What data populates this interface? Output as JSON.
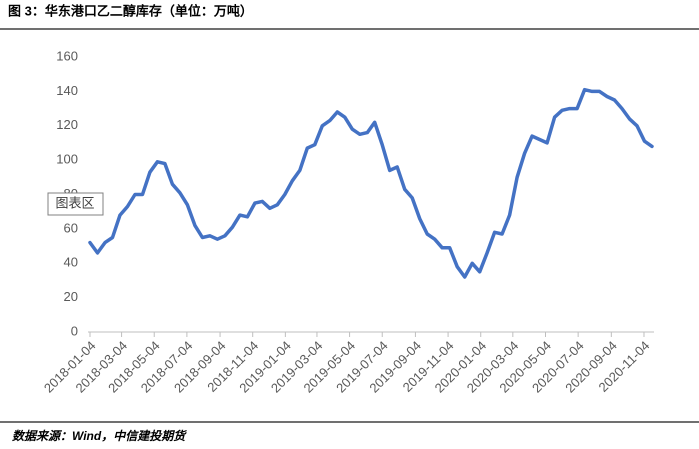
{
  "chart_data": {
    "type": "line",
    "title": "图 3：华东港口乙二醇库存（单位：万吨）",
    "source": "数据来源：Wind，中信建投期货",
    "tooltip": "图表区",
    "color": "#4472c4",
    "x": [
      "2018-01-04",
      "2018-01-18",
      "2018-02-01",
      "2018-02-15",
      "2018-03-01",
      "2018-03-15",
      "2018-03-29",
      "2018-04-12",
      "2018-04-26",
      "2018-05-10",
      "2018-05-24",
      "2018-06-07",
      "2018-06-21",
      "2018-07-05",
      "2018-07-19",
      "2018-08-02",
      "2018-08-16",
      "2018-08-30",
      "2018-09-13",
      "2018-09-27",
      "2018-10-11",
      "2018-10-25",
      "2018-11-08",
      "2018-11-22",
      "2018-12-06",
      "2018-12-20",
      "2019-01-03",
      "2019-01-17",
      "2019-01-31",
      "2019-02-14",
      "2019-02-28",
      "2019-03-14",
      "2019-03-28",
      "2019-04-11",
      "2019-04-25",
      "2019-05-09",
      "2019-05-23",
      "2019-06-06",
      "2019-06-20",
      "2019-07-04",
      "2019-07-18",
      "2019-08-01",
      "2019-08-15",
      "2019-08-29",
      "2019-09-12",
      "2019-09-26",
      "2019-10-10",
      "2019-10-24",
      "2019-11-07",
      "2019-11-21",
      "2019-12-05",
      "2019-12-19",
      "2020-01-02",
      "2020-01-16",
      "2020-01-30",
      "2020-02-13",
      "2020-02-27",
      "2020-03-12",
      "2020-03-26",
      "2020-04-09",
      "2020-04-23",
      "2020-05-07",
      "2020-05-21",
      "2020-06-04",
      "2020-06-18",
      "2020-07-02",
      "2020-07-16",
      "2020-07-30",
      "2020-08-13",
      "2020-08-27",
      "2020-09-10",
      "2020-09-24",
      "2020-10-08",
      "2020-10-22",
      "2020-11-05",
      "2020-11-19"
    ],
    "values": [
      52,
      46,
      52,
      55,
      68,
      73,
      80,
      80,
      93,
      99,
      98,
      86,
      81,
      74,
      62,
      55,
      56,
      54,
      56,
      61,
      68,
      67,
      75,
      76,
      72,
      74,
      80,
      88,
      94,
      107,
      109,
      120,
      123,
      128,
      125,
      118,
      115,
      116,
      122,
      109,
      94,
      96,
      83,
      78,
      66,
      57,
      54,
      49,
      49,
      38,
      32,
      40,
      35,
      46,
      58,
      57,
      68,
      90,
      104,
      114,
      112,
      110,
      125,
      129,
      130,
      130,
      141,
      140,
      140,
      137,
      135,
      130,
      124,
      120,
      111,
      108
    ],
    "xlim": [
      "2018-01-04",
      "2020-11-19"
    ],
    "xticks": [
      "2018-01-04",
      "2018-03-04",
      "2018-05-04",
      "2018-07-04",
      "2018-09-04",
      "2018-11-04",
      "2019-01-04",
      "2019-03-04",
      "2019-05-04",
      "2019-07-04",
      "2019-09-04",
      "2019-11-04",
      "2020-01-04",
      "2020-03-04",
      "2020-05-04",
      "2020-07-04",
      "2020-09-04",
      "2020-11-04"
    ],
    "ylim": [
      0,
      160
    ],
    "yticks": [
      0,
      20,
      40,
      60,
      80,
      100,
      120,
      140,
      160
    ],
    "grid": false
  }
}
